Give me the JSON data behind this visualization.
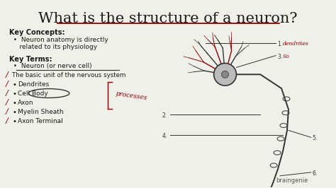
{
  "bg_color": "#f0f0eb",
  "title": "What is the structure of a neuron?",
  "title_fontsize": 15,
  "title_color": "#1a1a1a",
  "title_underline_color": "#8b0000",
  "key_concepts_header": "Key Concepts:",
  "key_concepts_line1": "  •  Neuron anatomy is directly",
  "key_concepts_line2": "     related to its physiology",
  "key_terms_header": "Key Terms:",
  "key_terms_bullet": "  •  Neuron (or nerve cell)",
  "key_terms_sub": "The basic unit of the nervous system",
  "list_items": [
    "Dendrites",
    "Cell Body",
    "Axon",
    "Myelin Sheath",
    "Axon Terminal"
  ],
  "annotation_dendrites": "dendrites",
  "annotation_so": "So",
  "annotation_processes": "processes",
  "braingenie_text": "braingenie",
  "left_text_color": "#1a1a1a",
  "red_color": "#8b0000",
  "gray_color": "#555555"
}
